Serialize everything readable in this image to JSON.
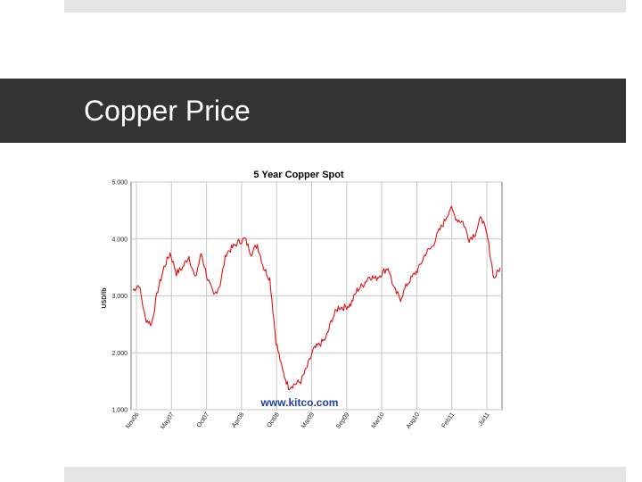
{
  "slide": {
    "title": "Copper Price",
    "colors": {
      "title_bar": "#333333",
      "title_text": "#ffffff",
      "strips": "#e4e4e4"
    }
  },
  "chart_data": {
    "type": "line",
    "title": "5 Year Copper Spot",
    "ylabel": "USD/lb",
    "xlabel": "",
    "ylim": [
      1.0,
      5.0
    ],
    "y_ticks": [
      "5.000",
      "4.000",
      "3.000",
      "2.000",
      "1.000"
    ],
    "x_ticks": [
      "Nov06",
      "May07",
      "Oct07",
      "Apr08",
      "Oct08",
      "Mar09",
      "Sep09",
      "Mar10",
      "Aug10",
      "Feb11",
      "Jul11"
    ],
    "watermark": "www.kitco.com",
    "grid": true,
    "legend": "none",
    "line_color": "#e01010",
    "series": [
      {
        "x": [
          "Nov06",
          "Dec06",
          "Jan07",
          "Feb07",
          "Mar07",
          "Apr07",
          "May07",
          "Jun07",
          "Jul07",
          "Aug07",
          "Sep07",
          "Oct07",
          "Nov07",
          "Dec07",
          "Jan08",
          "Feb08",
          "Mar08",
          "Apr08",
          "May08",
          "Jun08",
          "Jul08",
          "Aug08",
          "Sep08",
          "Oct08",
          "Nov08",
          "Dec08",
          "Jan09",
          "Feb09",
          "Mar09",
          "Apr09",
          "May09",
          "Jun09",
          "Jul09",
          "Aug09",
          "Sep09",
          "Oct09",
          "Nov09",
          "Dec09",
          "Jan10",
          "Feb10",
          "Mar10",
          "Apr10",
          "May10",
          "Jun10",
          "Jul10",
          "Aug10",
          "Sep10",
          "Oct10",
          "Nov10",
          "Dec10",
          "Jan11",
          "Feb11",
          "Mar11",
          "Apr11",
          "May11",
          "Jun11",
          "Jul11",
          "Aug11",
          "Sep11",
          "Oct11"
        ],
        "values": [
          3.1,
          3.2,
          2.6,
          2.5,
          3.1,
          3.5,
          3.75,
          3.4,
          3.5,
          3.7,
          3.3,
          3.75,
          3.3,
          3.0,
          3.2,
          3.75,
          3.85,
          3.95,
          4.0,
          3.75,
          3.9,
          3.5,
          3.3,
          2.2,
          1.7,
          1.4,
          1.45,
          1.5,
          1.75,
          2.05,
          2.15,
          2.25,
          2.6,
          2.8,
          2.8,
          2.85,
          3.1,
          3.2,
          3.35,
          3.3,
          3.4,
          3.5,
          3.1,
          2.95,
          3.2,
          3.35,
          3.5,
          3.75,
          3.85,
          4.1,
          4.3,
          4.55,
          4.35,
          4.3,
          4.0,
          4.1,
          4.4,
          4.0,
          3.3,
          3.5
        ]
      }
    ]
  }
}
